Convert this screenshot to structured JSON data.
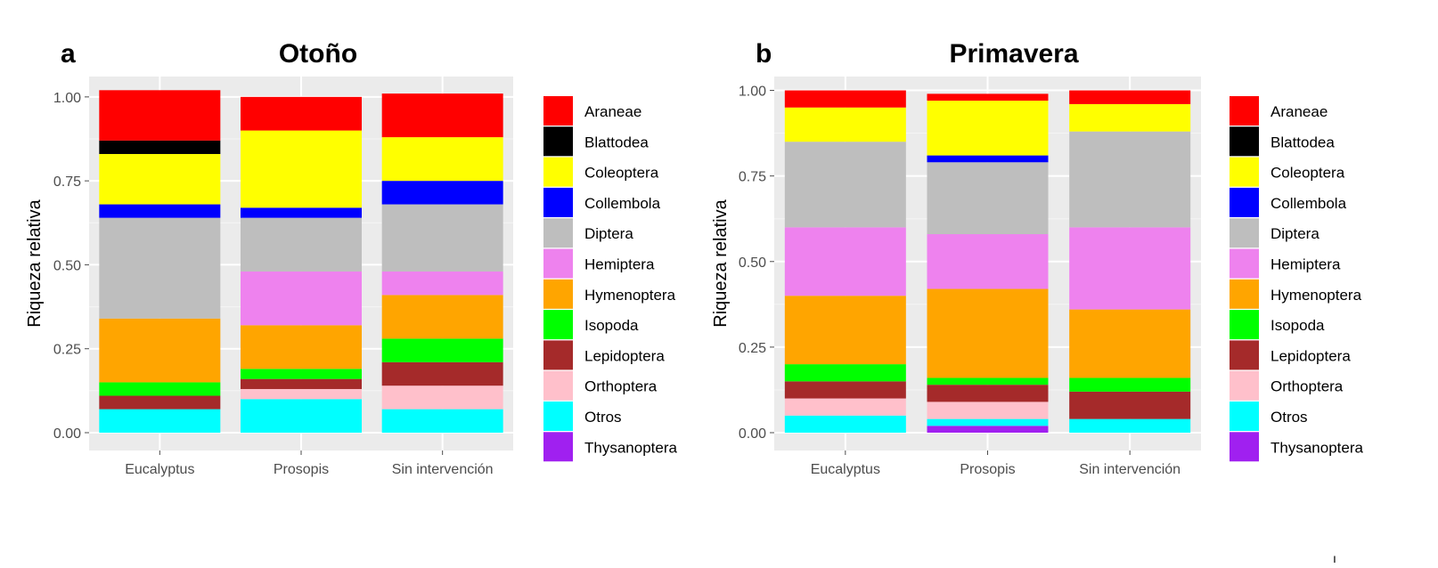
{
  "chart_data": [
    {
      "type": "bar",
      "stacked": true,
      "tag": "a",
      "title": "Otoño",
      "xlabel": "",
      "ylabel": "Riqueza relativa",
      "ylim": [
        0,
        1.05
      ],
      "yticks": [
        "0.00",
        "0.25",
        "0.50",
        "0.75",
        "1.00"
      ],
      "categories": [
        "Eucalyptus",
        "Prosopis",
        "Sin intervención"
      ],
      "legend_position": "right",
      "series": [
        {
          "name": "Thysanoptera",
          "values": [
            0,
            0,
            0
          ]
        },
        {
          "name": "Otros",
          "values": [
            0.07,
            0.1,
            0.07
          ]
        },
        {
          "name": "Orthoptera",
          "values": [
            0,
            0.03,
            0.07
          ]
        },
        {
          "name": "Lepidoptera",
          "values": [
            0.04,
            0.03,
            0.07
          ]
        },
        {
          "name": "Isopoda",
          "values": [
            0.04,
            0.03,
            0.07
          ]
        },
        {
          "name": "Hymenoptera",
          "values": [
            0.19,
            0.13,
            0.13
          ]
        },
        {
          "name": "Hemiptera",
          "values": [
            0,
            0.16,
            0.07
          ]
        },
        {
          "name": "Diptera",
          "values": [
            0.3,
            0.16,
            0.2
          ]
        },
        {
          "name": "Collembola",
          "values": [
            0.04,
            0.03,
            0.07
          ]
        },
        {
          "name": "Coleoptera",
          "values": [
            0.15,
            0.23,
            0.13
          ]
        },
        {
          "name": "Blattodea",
          "values": [
            0.04,
            0,
            0
          ]
        },
        {
          "name": "Araneae",
          "values": [
            0.15,
            0.1,
            0.13
          ]
        }
      ]
    },
    {
      "type": "bar",
      "stacked": true,
      "tag": "b",
      "title": "Primavera",
      "xlabel": "",
      "ylabel": "Riqueza relativa",
      "ylim": [
        0,
        1.03
      ],
      "yticks": [
        "0.00",
        "0.25",
        "0.50",
        "0.75",
        "1.00"
      ],
      "categories": [
        "Eucalyptus",
        "Prosopis",
        "Sin intervención"
      ],
      "legend_position": "right",
      "series": [
        {
          "name": "Thysanoptera",
          "values": [
            0,
            0.02,
            0
          ]
        },
        {
          "name": "Otros",
          "values": [
            0.05,
            0.02,
            0.04
          ]
        },
        {
          "name": "Orthoptera",
          "values": [
            0.05,
            0.05,
            0
          ]
        },
        {
          "name": "Lepidoptera",
          "values": [
            0.05,
            0.05,
            0.08
          ]
        },
        {
          "name": "Isopoda",
          "values": [
            0.05,
            0.02,
            0.04
          ]
        },
        {
          "name": "Hymenoptera",
          "values": [
            0.2,
            0.26,
            0.2
          ]
        },
        {
          "name": "Hemiptera",
          "values": [
            0.2,
            0.16,
            0.24
          ]
        },
        {
          "name": "Diptera",
          "values": [
            0.25,
            0.21,
            0.28
          ]
        },
        {
          "name": "Collembola",
          "values": [
            0,
            0.02,
            0
          ]
        },
        {
          "name": "Coleoptera",
          "values": [
            0.1,
            0.16,
            0.08
          ]
        },
        {
          "name": "Blattodea",
          "values": [
            0,
            0,
            0
          ]
        },
        {
          "name": "Araneae",
          "values": [
            0.05,
            0.02,
            0.04
          ]
        }
      ]
    }
  ],
  "legend": [
    {
      "name": "Araneae",
      "color": "#ff0000"
    },
    {
      "name": "Blattodea",
      "color": "#000000"
    },
    {
      "name": "Coleoptera",
      "color": "#ffff00"
    },
    {
      "name": "Collembola",
      "color": "#0000ff"
    },
    {
      "name": "Diptera",
      "color": "#bebebe"
    },
    {
      "name": "Hemiptera",
      "color": "#ee82ee"
    },
    {
      "name": "Hymenoptera",
      "color": "#ffa500"
    },
    {
      "name": "Isopoda",
      "color": "#00ff00"
    },
    {
      "name": "Lepidoptera",
      "color": "#a52a2a"
    },
    {
      "name": "Orthoptera",
      "color": "#ffc0cb"
    },
    {
      "name": "Otros",
      "color": "#00ffff"
    },
    {
      "name": "Thysanoptera",
      "color": "#a020f0"
    }
  ],
  "stray_mark": "ı"
}
